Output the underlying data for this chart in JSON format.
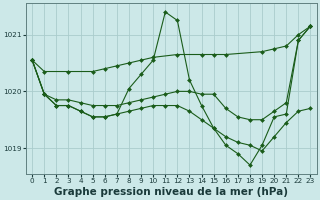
{
  "background_color": "#cce8e8",
  "grid_color": "#aacccc",
  "line_color": "#1a5c1a",
  "marker_color": "#1a5c1a",
  "xlabel": "Graphe pression niveau de la mer (hPa)",
  "xlabel_fontsize": 7.5,
  "ylim": [
    1018.55,
    1021.55
  ],
  "xlim": [
    -0.5,
    23.5
  ],
  "yticks": [
    1019,
    1020,
    1021
  ],
  "xticks": [
    0,
    1,
    2,
    3,
    4,
    5,
    6,
    7,
    8,
    9,
    10,
    11,
    12,
    13,
    14,
    15,
    16,
    17,
    18,
    19,
    20,
    21,
    22,
    23
  ],
  "series": [
    {
      "x": [
        0,
        1,
        3,
        5,
        6,
        7,
        8,
        9,
        10,
        12,
        14,
        15,
        16,
        19,
        20,
        21,
        22,
        23
      ],
      "y": [
        1020.55,
        1020.35,
        1020.35,
        1020.35,
        1020.4,
        1020.45,
        1020.5,
        1020.55,
        1020.6,
        1020.65,
        1020.65,
        1020.65,
        1020.65,
        1020.7,
        1020.75,
        1020.8,
        1021.0,
        1021.15
      ]
    },
    {
      "x": [
        0,
        1,
        2,
        3,
        4,
        5,
        6,
        7,
        8,
        9,
        10,
        11,
        12,
        13,
        14,
        15,
        16,
        17,
        18,
        19,
        20,
        21,
        22,
        23
      ],
      "y": [
        1020.55,
        1019.95,
        1019.85,
        1019.85,
        1019.8,
        1019.75,
        1019.75,
        1019.75,
        1019.8,
        1019.85,
        1019.9,
        1019.95,
        1020.0,
        1020.0,
        1019.95,
        1019.95,
        1019.7,
        1019.55,
        1019.5,
        1019.5,
        1019.65,
        1019.8,
        1020.9,
        1021.15
      ]
    },
    {
      "x": [
        0,
        1,
        2,
        3,
        4,
        5,
        6,
        7,
        8,
        9,
        10,
        11,
        12,
        13,
        14,
        15,
        16,
        17,
        18,
        19,
        20,
        21,
        22,
        23
      ],
      "y": [
        1020.55,
        1019.95,
        1019.75,
        1019.75,
        1019.65,
        1019.55,
        1019.55,
        1019.6,
        1019.65,
        1019.7,
        1019.75,
        1019.75,
        1019.75,
        1019.65,
        1019.5,
        1019.35,
        1019.2,
        1019.1,
        1019.05,
        1018.95,
        1019.2,
        1019.45,
        1019.65,
        1019.7
      ]
    },
    {
      "x": [
        0,
        1,
        2,
        3,
        4,
        5,
        6,
        7,
        8,
        9,
        10,
        11,
        12,
        13,
        14,
        15,
        16,
        17,
        18,
        19,
        20,
        21,
        22,
        23
      ],
      "y": [
        1020.55,
        1019.95,
        1019.75,
        1019.75,
        1019.65,
        1019.55,
        1019.55,
        1019.6,
        1020.05,
        1020.3,
        1020.55,
        1021.4,
        1021.25,
        1020.2,
        1019.75,
        1019.35,
        1019.05,
        1018.9,
        1018.7,
        1019.05,
        1019.55,
        1019.6,
        1020.9,
        1021.15
      ]
    }
  ]
}
